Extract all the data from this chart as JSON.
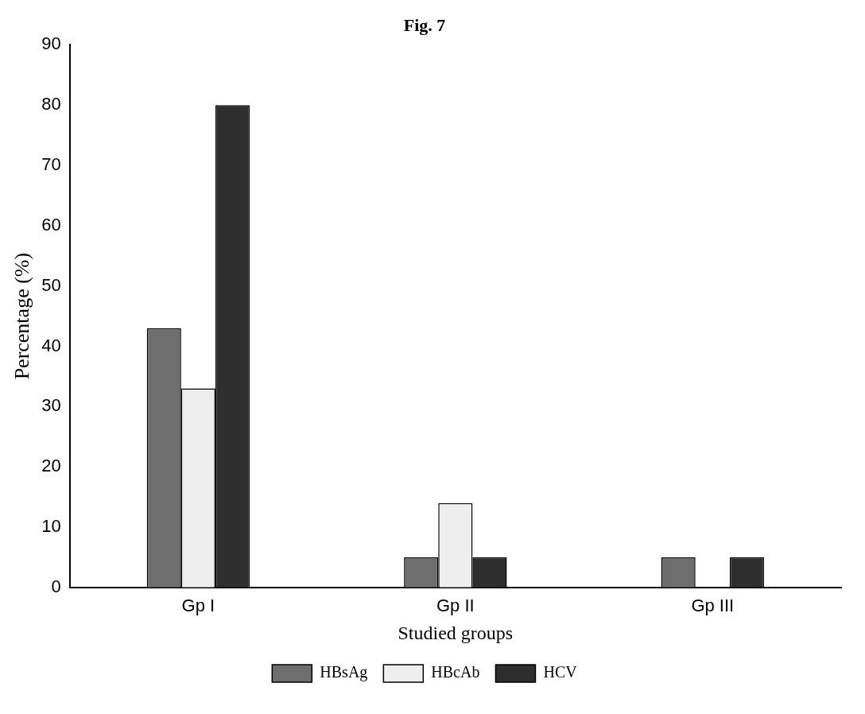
{
  "chart_data": {
    "type": "bar",
    "title": "Fig. 7",
    "xlabel": "Studied groups",
    "ylabel": "Percentage (%)",
    "categories": [
      "Gp I",
      "Gp II",
      "Gp III"
    ],
    "series": [
      {
        "name": "HBsAg",
        "color": "#6e6e6e",
        "values": [
          43,
          5,
          5
        ]
      },
      {
        "name": "HBcAb",
        "color": "#eeeeee",
        "values": [
          33,
          14,
          0
        ]
      },
      {
        "name": "HCV",
        "color": "#2e2e2e",
        "values": [
          80,
          5,
          5
        ]
      }
    ],
    "ylim": [
      0,
      90
    ],
    "yticks": [
      0,
      10,
      20,
      30,
      40,
      50,
      60,
      70,
      80,
      90
    ],
    "grid": false,
    "legend": "bottom"
  }
}
